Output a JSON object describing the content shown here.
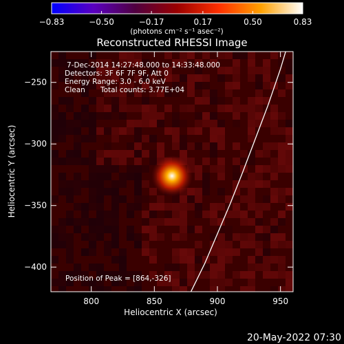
{
  "chart_data": {
    "type": "heatmap",
    "title": "Reconstructed RHESSI Image",
    "xlabel": "Heliocentric X (arcsec)",
    "ylabel": "Heliocentric Y (arcsec)",
    "xlim": [
      768,
      960
    ],
    "ylim": [
      -420,
      -225
    ],
    "x_ticks": [
      800,
      850,
      900,
      950
    ],
    "x_tick_labels": [
      "800",
      "850",
      "900",
      "950"
    ],
    "y_ticks": [
      -250,
      -300,
      -350,
      -400
    ],
    "y_tick_labels": [
      "−250",
      "−300",
      "−350",
      "−400"
    ],
    "colorbar": {
      "min": -0.83,
      "max": 0.83,
      "ticks": [
        -0.83,
        -0.5,
        -0.17,
        0.17,
        0.5,
        0.83
      ],
      "tick_labels": [
        "−0.83",
        "−0.50",
        "−0.17",
        "0.17",
        "0.50",
        "0.83"
      ],
      "unit_label": "(photons cm⁻² s⁻¹ asec⁻²)",
      "colors": [
        "#0000ff",
        "#5a00c0",
        "#500040",
        "#9a0000",
        "#ff3000",
        "#ffa000",
        "#ffffff"
      ]
    },
    "annotations": [
      "7-Dec-2014 14:27:48.000 to 14:33:48.000",
      "Detectors: 3F 6F 7F 9F, Att 0",
      "Energy Range: 3.0 - 6.0 keV",
      "Clean",
      "Total counts: 3.77E+04"
    ],
    "peak_label": "Position of Peak = [864,-326]",
    "peak": {
      "x": 864,
      "y": -326
    },
    "limb_points": [
      [
        879,
        -420
      ],
      [
        890,
        -397
      ],
      [
        900,
        -373
      ],
      [
        910,
        -349
      ],
      [
        920,
        -323
      ],
      [
        930,
        -296
      ],
      [
        940,
        -269
      ],
      [
        950,
        -239
      ],
      [
        955,
        -222
      ]
    ],
    "map_colors": {
      "background": "#3a0000",
      "mid": "#6e0a0a",
      "dark": "#1e0008",
      "core": "#ffffff",
      "glow": "#ffb000"
    }
  },
  "footer": {
    "date": "20-May-2022 07:30"
  }
}
